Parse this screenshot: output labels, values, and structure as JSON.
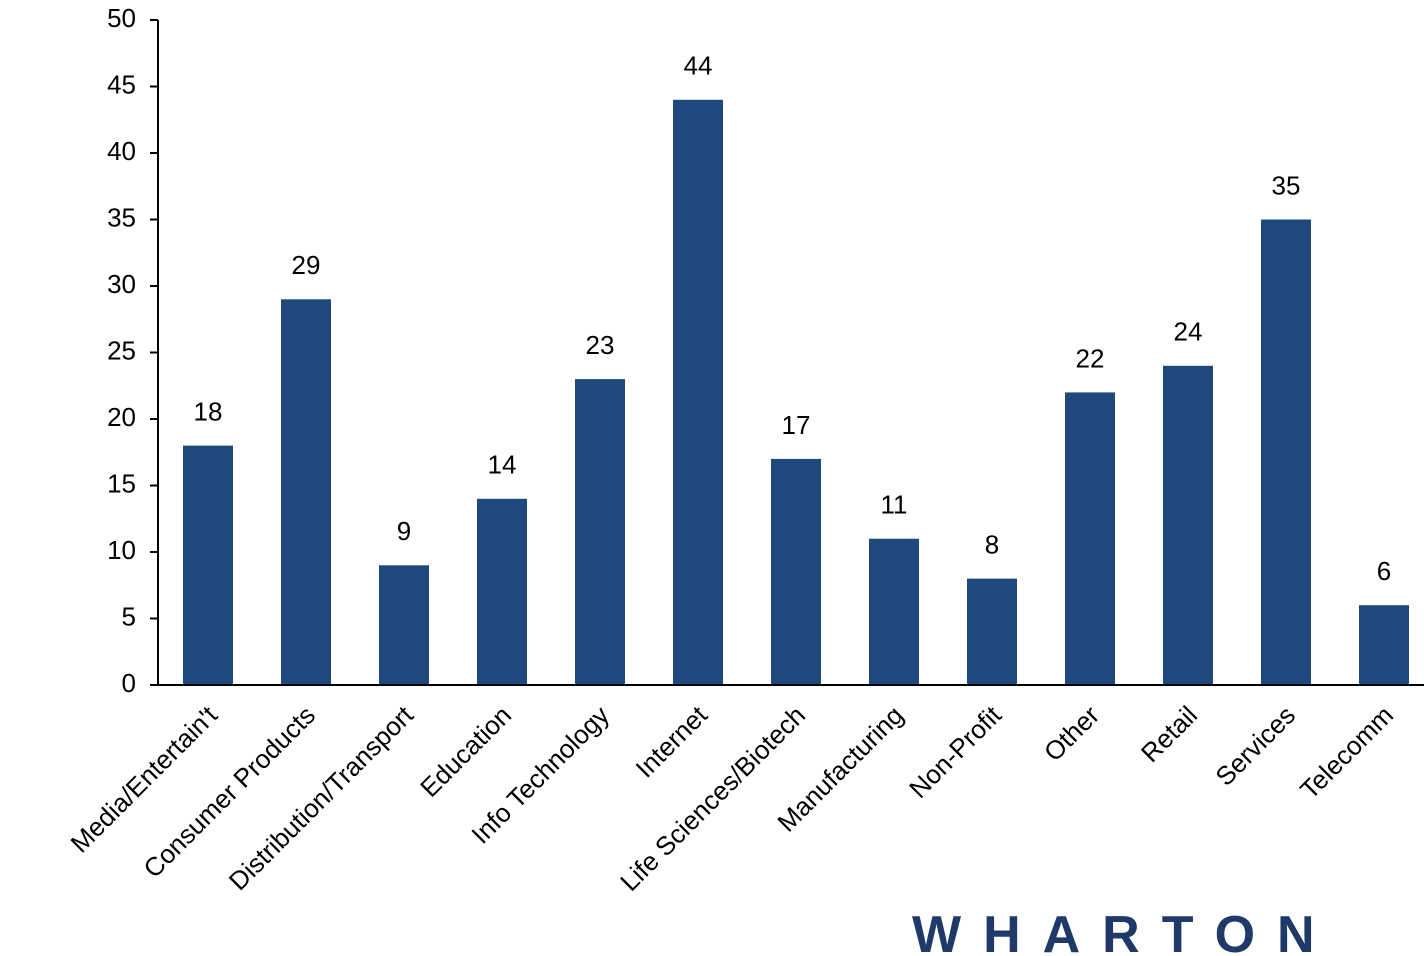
{
  "chart_data": {
    "type": "bar",
    "categories": [
      "Media/Entertain't",
      "Consumer Products",
      "Distribution/Transport",
      "Education",
      "Info Technology",
      "Internet",
      "Life Sciences/Biotech",
      "Manufacturing",
      "Non-Profit",
      "Other",
      "Retail",
      "Services",
      "Telecomm"
    ],
    "values": [
      18,
      29,
      9,
      14,
      23,
      44,
      17,
      11,
      8,
      22,
      24,
      35,
      6
    ],
    "color": "#1f497d",
    "ylim": [
      0,
      50
    ],
    "yticks": [
      0,
      5,
      10,
      15,
      20,
      25,
      30,
      35,
      40,
      45,
      50
    ],
    "grid": false
  },
  "logo": "WHARTON"
}
